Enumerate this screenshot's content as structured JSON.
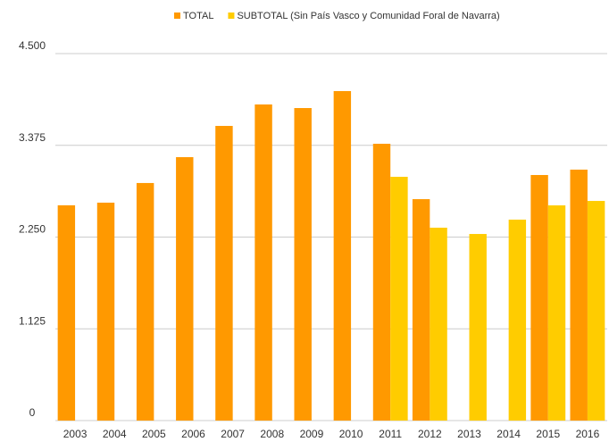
{
  "chart_data": {
    "type": "bar",
    "categories": [
      "2003",
      "2004",
      "2005",
      "2006",
      "2007",
      "2008",
      "2009",
      "2010",
      "2011",
      "2012",
      "2013",
      "2014",
      "2015",
      "2016"
    ],
    "series": [
      {
        "name": "TOTAL",
        "color": "#ff9900",
        "values": [
          2640,
          2672,
          2913,
          3230,
          3613,
          3876,
          3832,
          4040,
          3394,
          2715,
          null,
          null,
          3011,
          3077
        ]
      },
      {
        "name": "SUBTOTAL (Sin País Vasco y Comunidad Foral de Navarra)",
        "color": "#ffcc00",
        "values": [
          null,
          null,
          null,
          null,
          null,
          null,
          null,
          null,
          2989,
          2365,
          2288,
          2464,
          2639,
          2693
        ]
      }
    ],
    "ylim": [
      0,
      4500
    ],
    "yticks": [
      0,
      {
        "value": 1125,
        "label": "1.125"
      },
      {
        "value": 2250,
        "label": "2.250"
      },
      {
        "value": 3375,
        "label": "3.375"
      },
      {
        "value": 4500,
        "label": "4.500"
      }
    ],
    "grid": true,
    "legend": "top"
  }
}
